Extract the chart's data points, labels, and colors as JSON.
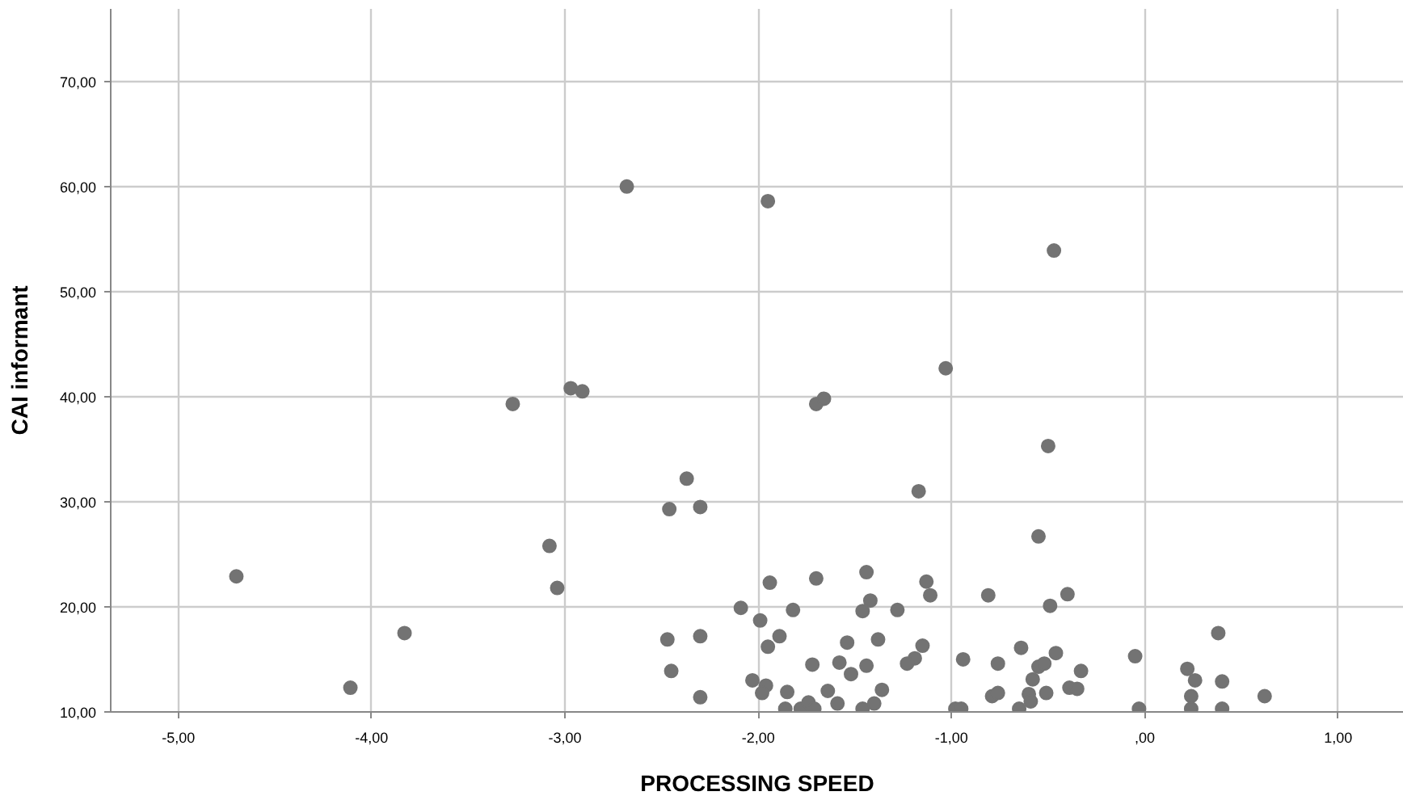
{
  "chart_data": {
    "type": "scatter",
    "xlabel": "PROCESSING SPEED",
    "ylabel": "CAI informant",
    "xlim": [
      -5.35,
      1.34
    ],
    "ylim": [
      10,
      76.9
    ],
    "xticks": [
      {
        "value": -5,
        "label": "-5,00"
      },
      {
        "value": -4,
        "label": "-4,00"
      },
      {
        "value": -3,
        "label": "-3,00"
      },
      {
        "value": -2,
        "label": "-2,00"
      },
      {
        "value": -1,
        "label": "-1,00"
      },
      {
        "value": 0,
        "label": ",00"
      },
      {
        "value": 1,
        "label": "1,00"
      }
    ],
    "yticks": [
      {
        "value": 10,
        "label": "10,00"
      },
      {
        "value": 20,
        "label": "20,00"
      },
      {
        "value": 30,
        "label": "30,00"
      },
      {
        "value": 40,
        "label": "40,00"
      },
      {
        "value": 50,
        "label": "50,00"
      },
      {
        "value": 60,
        "label": "60,00"
      },
      {
        "value": 70,
        "label": "70,00"
      }
    ],
    "grid": true,
    "marker": "circle",
    "series": [
      {
        "color": "#737373",
        "x": [
          -4.7,
          -4.11,
          -3.83,
          -3.27,
          -3.08,
          -3.04,
          -2.97,
          -2.91,
          -2.68,
          -2.37,
          -2.46,
          -2.3,
          -1.95,
          -1.7,
          -1.66,
          -1.03,
          -1.17,
          -0.47,
          -0.5,
          -0.55,
          -1.94,
          -1.7,
          -1.44,
          -1.13,
          -1.11,
          -0.81,
          -0.4,
          -0.49,
          -2.09,
          -1.99,
          -1.82,
          -1.42,
          -1.46,
          -1.28,
          -2.47,
          -2.3,
          -2.45,
          -2.3,
          -1.95,
          -1.89,
          -1.54,
          -1.38,
          -1.15,
          -1.19,
          -1.23,
          -1.72,
          -1.58,
          -1.52,
          -1.44,
          -0.94,
          -0.76,
          -0.64,
          -0.46,
          -0.55,
          -0.52,
          -0.33,
          -0.58,
          -0.05,
          -2.03,
          -1.96,
          -1.98,
          -1.85,
          -1.64,
          -1.36,
          -1.59,
          -1.86,
          -1.78,
          -1.74,
          -1.71,
          -1.46,
          -1.4,
          -0.98,
          -0.95,
          -0.79,
          -0.76,
          -0.6,
          -0.59,
          -0.51,
          -0.39,
          -0.35,
          -0.65,
          -0.03,
          0.38,
          0.22,
          0.26,
          0.4,
          0.24,
          0.62,
          0.24,
          0.4
        ],
        "values": [
          22.9,
          12.3,
          17.5,
          39.3,
          25.8,
          21.8,
          40.8,
          40.5,
          60.0,
          32.2,
          29.3,
          29.5,
          58.6,
          39.3,
          39.8,
          42.7,
          31.0,
          53.9,
          35.3,
          26.7,
          22.3,
          22.7,
          23.3,
          22.4,
          21.1,
          21.1,
          21.2,
          20.1,
          19.9,
          18.7,
          19.7,
          20.6,
          19.6,
          19.7,
          16.9,
          17.2,
          13.9,
          11.4,
          16.2,
          17.2,
          16.6,
          16.9,
          16.3,
          15.1,
          14.6,
          14.5,
          14.7,
          13.6,
          14.4,
          15.0,
          14.6,
          16.1,
          15.6,
          14.3,
          14.6,
          13.9,
          13.1,
          15.3,
          13.0,
          12.5,
          11.8,
          11.9,
          12.0,
          12.1,
          10.8,
          10.3,
          10.3,
          10.9,
          10.3,
          10.3,
          10.8,
          10.3,
          10.3,
          11.5,
          11.8,
          11.7,
          11.0,
          11.8,
          12.3,
          12.2,
          10.3,
          10.3,
          17.5,
          14.1,
          13.0,
          12.9,
          11.5,
          11.5,
          10.3,
          10.3
        ]
      }
    ]
  }
}
